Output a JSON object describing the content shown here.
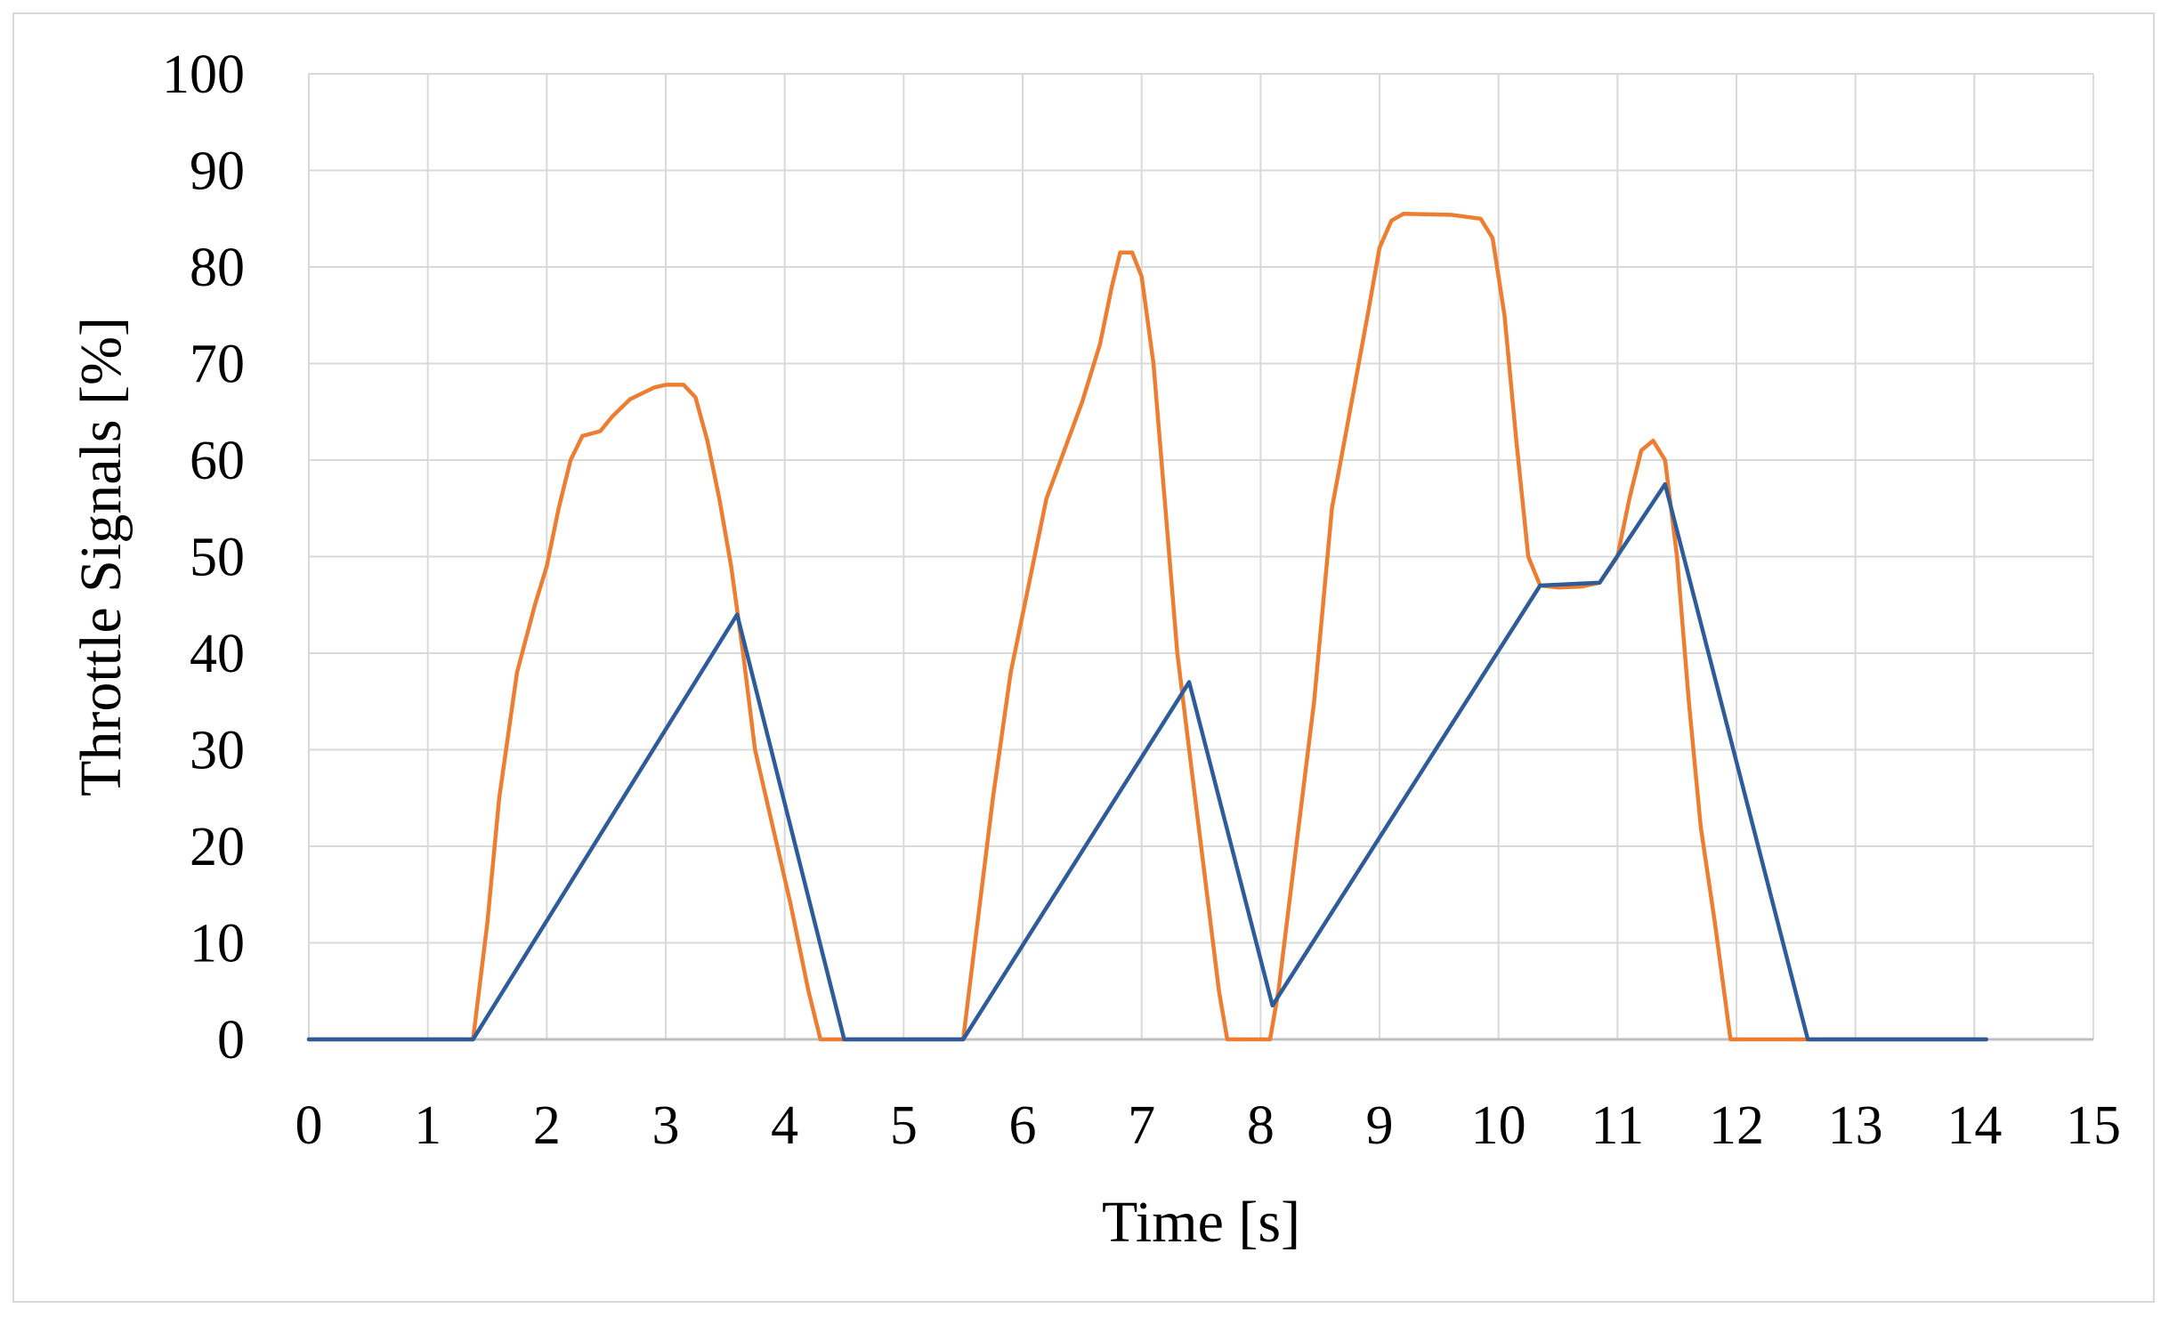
{
  "chart_data": {
    "type": "line",
    "title": "",
    "xlabel": "Time [s]",
    "ylabel": "Throttle Signals [%]",
    "xlim": [
      0,
      15
    ],
    "ylim": [
      0,
      100
    ],
    "x_ticks": [
      "0",
      "1",
      "2",
      "3",
      "4",
      "5",
      "6",
      "7",
      "8",
      "9",
      "10",
      "11",
      "12",
      "13",
      "14",
      "15"
    ],
    "y_ticks": [
      "0",
      "10",
      "20",
      "30",
      "40",
      "50",
      "60",
      "70",
      "80",
      "90",
      "100"
    ],
    "grid": true,
    "legend": "none",
    "series": [
      {
        "color": "#ED7D31",
        "points": [
          [
            0,
            0
          ],
          [
            1.38,
            0
          ],
          [
            1.5,
            12
          ],
          [
            1.6,
            25
          ],
          [
            1.75,
            38
          ],
          [
            1.9,
            45
          ],
          [
            2.0,
            49
          ],
          [
            2.1,
            55
          ],
          [
            2.2,
            60
          ],
          [
            2.3,
            62.5
          ],
          [
            2.45,
            63
          ],
          [
            2.55,
            64.5
          ],
          [
            2.7,
            66.3
          ],
          [
            2.9,
            67.5
          ],
          [
            3.0,
            67.8
          ],
          [
            3.15,
            67.8
          ],
          [
            3.25,
            66.5
          ],
          [
            3.35,
            62
          ],
          [
            3.45,
            56
          ],
          [
            3.55,
            49
          ],
          [
            3.65,
            40
          ],
          [
            3.75,
            30
          ],
          [
            3.9,
            22
          ],
          [
            4.05,
            14
          ],
          [
            4.2,
            5
          ],
          [
            4.3,
            0
          ],
          [
            5.5,
            0
          ],
          [
            5.6,
            10
          ],
          [
            5.75,
            25
          ],
          [
            5.9,
            38
          ],
          [
            6.05,
            47
          ],
          [
            6.2,
            56
          ],
          [
            6.35,
            61
          ],
          [
            6.5,
            66
          ],
          [
            6.65,
            72
          ],
          [
            6.75,
            78
          ],
          [
            6.82,
            81.5
          ],
          [
            6.92,
            81.5
          ],
          [
            7.0,
            79
          ],
          [
            7.1,
            70
          ],
          [
            7.2,
            55
          ],
          [
            7.3,
            40
          ],
          [
            7.4,
            30
          ],
          [
            7.52,
            18
          ],
          [
            7.65,
            5
          ],
          [
            7.72,
            0
          ],
          [
            8.08,
            0
          ],
          [
            8.15,
            5
          ],
          [
            8.3,
            20
          ],
          [
            8.45,
            35
          ],
          [
            8.6,
            55
          ],
          [
            8.75,
            65
          ],
          [
            8.9,
            75
          ],
          [
            9.0,
            82
          ],
          [
            9.1,
            84.8
          ],
          [
            9.2,
            85.5
          ],
          [
            9.6,
            85.4
          ],
          [
            9.85,
            85
          ],
          [
            9.95,
            83
          ],
          [
            10.05,
            75
          ],
          [
            10.15,
            62
          ],
          [
            10.25,
            50
          ],
          [
            10.35,
            47
          ],
          [
            10.5,
            46.8
          ],
          [
            10.7,
            46.9
          ],
          [
            10.85,
            47.3
          ],
          [
            11.0,
            50
          ],
          [
            11.1,
            56
          ],
          [
            11.2,
            61
          ],
          [
            11.3,
            62
          ],
          [
            11.4,
            60
          ],
          [
            11.5,
            50
          ],
          [
            11.6,
            35
          ],
          [
            11.7,
            22
          ],
          [
            11.82,
            12
          ],
          [
            11.95,
            0
          ],
          [
            14.1,
            0
          ]
        ]
      },
      {
        "color": "#2E5C9A",
        "points": [
          [
            0,
            0
          ],
          [
            1.38,
            0
          ],
          [
            3.6,
            44
          ],
          [
            4.5,
            0
          ],
          [
            5.5,
            0
          ],
          [
            7.4,
            37
          ],
          [
            8.1,
            3.5
          ],
          [
            10.35,
            47
          ],
          [
            10.85,
            47.3
          ],
          [
            11.4,
            57.5
          ],
          [
            12.6,
            0
          ],
          [
            14.1,
            0
          ]
        ]
      }
    ]
  }
}
